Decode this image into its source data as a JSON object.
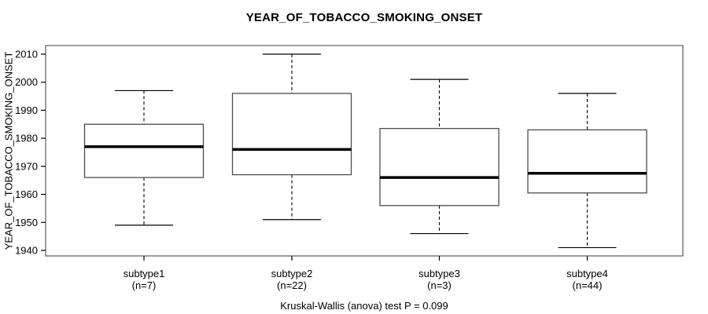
{
  "chart_data": {
    "type": "boxplot",
    "title": "YEAR_OF_TOBACCO_SMOKING_ONSET",
    "xlabel": "",
    "ylabel": "YEAR_OF_TOBACCO_SMOKING_ONSET",
    "footer": "Kruskal-Wallis (anova) test P = 0.099",
    "ylim": [
      1938,
      2012
    ],
    "yticks": [
      2010,
      2000,
      1990,
      1980,
      1970,
      1960,
      1950,
      1940
    ],
    "grid": false,
    "legend": null,
    "groups": [
      {
        "label": "subtype1",
        "n_label": "(n=7)",
        "n": 7,
        "whisker_low": 1949,
        "q1": 1966,
        "median": 1977,
        "q3": 1985,
        "whisker_high": 1997,
        "outliers": []
      },
      {
        "label": "subtype2",
        "n_label": "(n=22)",
        "n": 22,
        "whisker_low": 1951,
        "q1": 1967,
        "median": 1976,
        "q3": 1996,
        "whisker_high": 2010,
        "outliers": []
      },
      {
        "label": "subtype3",
        "n_label": "(n=3)",
        "n": 3,
        "whisker_low": 1946,
        "q1": 1956,
        "median": 1966,
        "q3": 1983.5,
        "whisker_high": 2001,
        "outliers": []
      },
      {
        "label": "subtype4",
        "n_label": "(n=44)",
        "n": 44,
        "whisker_low": 1941,
        "q1": 1960.5,
        "median": 1967.5,
        "q3": 1983,
        "whisker_high": 1996,
        "outliers": []
      }
    ],
    "colors": {
      "background": "#ffffff",
      "frame": "#5a5a5a",
      "box_border": "#4d4d4d",
      "box_fill": "#ffffff",
      "median": "#000000",
      "whisker": "#000000",
      "text": "#000000"
    }
  }
}
